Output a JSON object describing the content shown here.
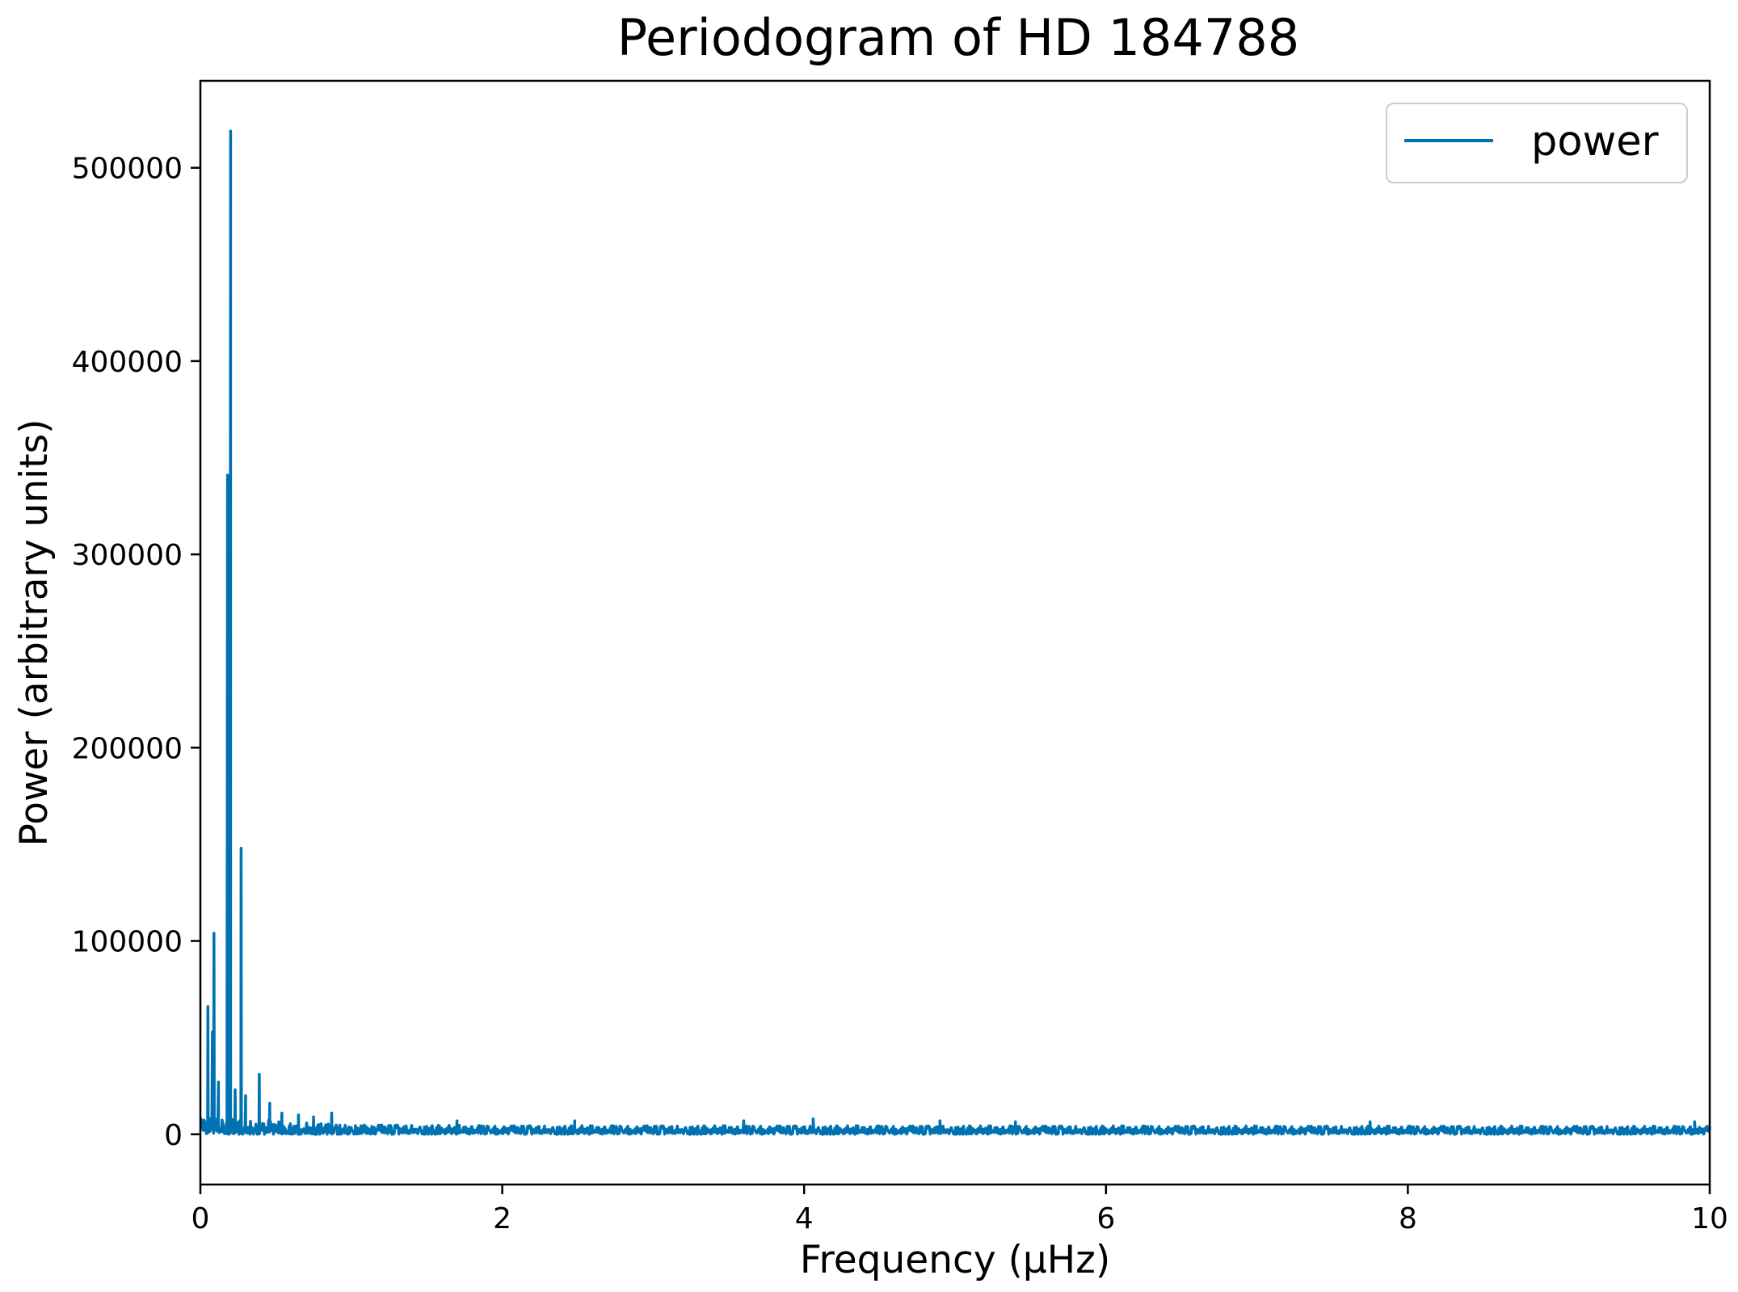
{
  "chart_data": {
    "type": "line",
    "title": "Periodogram of HD 184788",
    "xlabel": "Frequency (μHz)",
    "ylabel": "Power (arbitrary units)",
    "xlim": [
      0,
      10
    ],
    "ylim": [
      -26000,
      545000
    ],
    "xticks": [
      0,
      2,
      4,
      6,
      8,
      10
    ],
    "xtick_labels": [
      "0",
      "2",
      "4",
      "6",
      "8",
      "10"
    ],
    "yticks": [
      0,
      100000,
      200000,
      300000,
      400000,
      500000
    ],
    "ytick_labels": [
      "0",
      "100000",
      "200000",
      "300000",
      "400000",
      "500000"
    ],
    "grid": false,
    "legend": {
      "position": "upper-right",
      "entries": [
        "power"
      ]
    },
    "series": [
      {
        "name": "power",
        "color": "#0072b2",
        "peaks": [
          {
            "x": 0.05,
            "y": 66000
          },
          {
            "x": 0.08,
            "y": 53000
          },
          {
            "x": 0.09,
            "y": 104000
          },
          {
            "x": 0.12,
            "y": 27000
          },
          {
            "x": 0.18,
            "y": 341000
          },
          {
            "x": 0.2,
            "y": 519000
          },
          {
            "x": 0.23,
            "y": 23000
          },
          {
            "x": 0.27,
            "y": 148000
          },
          {
            "x": 0.3,
            "y": 20000
          },
          {
            "x": 0.39,
            "y": 31000
          },
          {
            "x": 0.46,
            "y": 16000
          },
          {
            "x": 0.54,
            "y": 11000
          },
          {
            "x": 0.65,
            "y": 10000
          },
          {
            "x": 0.75,
            "y": 9000
          },
          {
            "x": 0.87,
            "y": 11000
          },
          {
            "x": 1.7,
            "y": 7000
          },
          {
            "x": 2.48,
            "y": 7000
          },
          {
            "x": 3.6,
            "y": 7000
          },
          {
            "x": 4.06,
            "y": 8000
          },
          {
            "x": 4.9,
            "y": 7000
          },
          {
            "x": 5.4,
            "y": 6500
          },
          {
            "x": 7.75,
            "y": 6500
          },
          {
            "x": 9.9,
            "y": 6500
          }
        ],
        "noise_floor": [
          {
            "x": 0.0,
            "y": 9000
          },
          {
            "x": 1.0,
            "y": 5000
          },
          {
            "x": 2.0,
            "y": 4500
          },
          {
            "x": 10.0,
            "y": 4200
          }
        ]
      }
    ]
  }
}
